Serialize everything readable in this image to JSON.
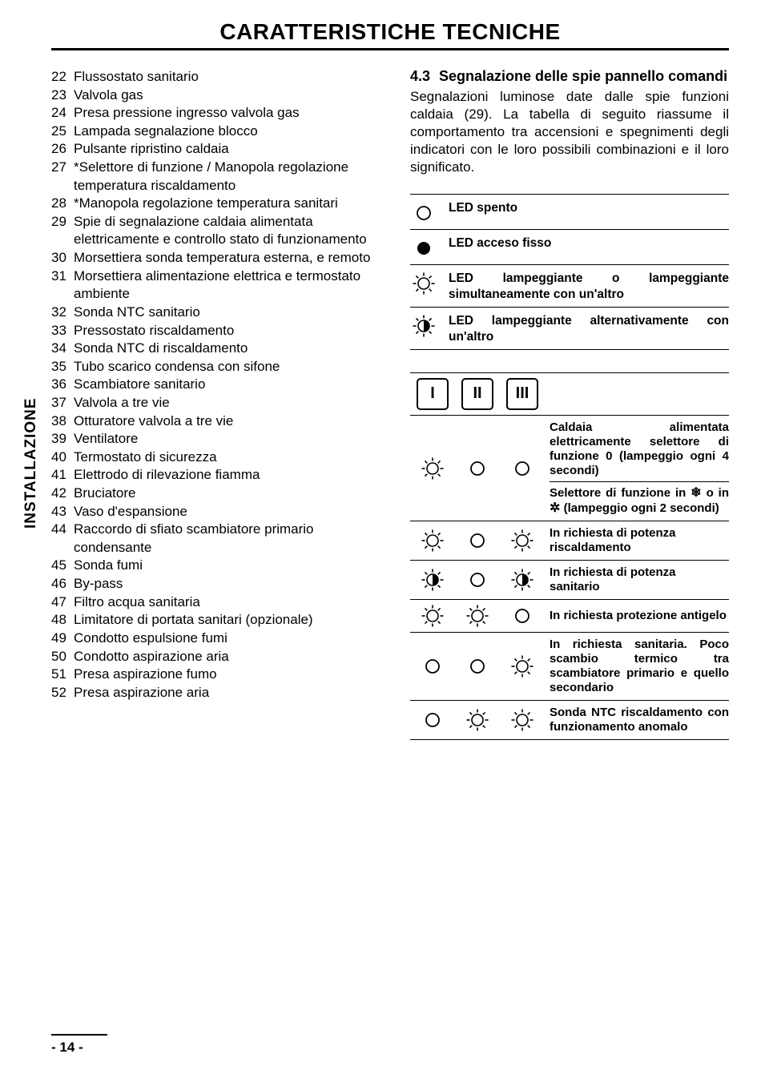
{
  "title": "CARATTERISTICHE TECNICHE",
  "side_tab": "INSTALLAZIONE",
  "page_number": "- 14 -",
  "list": [
    {
      "n": "22",
      "t": "Flussostato sanitario"
    },
    {
      "n": "23",
      "t": "Valvola gas"
    },
    {
      "n": "24",
      "t": "Presa pressione ingresso valvola gas"
    },
    {
      "n": "25",
      "t": "Lampada segnalazione blocco"
    },
    {
      "n": "26",
      "t": "Pulsante ripristino caldaia"
    },
    {
      "n": "27",
      "t": "*Selettore di funzione / Manopola regolazione temperatura riscaldamento"
    },
    {
      "n": "28",
      "t": "*Manopola regolazione temperatura sanitari"
    },
    {
      "n": "29",
      "t": "Spie di segnalazione caldaia alimentata elettricamente e controllo stato di funzionamento"
    },
    {
      "n": "30",
      "t": "Morsettiera sonda temperatura esterna, e remoto"
    },
    {
      "n": "31",
      "t": "Morsettiera alimentazione elettrica e termostato ambiente"
    },
    {
      "n": "32",
      "t": "Sonda NTC sanitario"
    },
    {
      "n": "33",
      "t": "Pressostato riscaldamento"
    },
    {
      "n": "34",
      "t": "Sonda NTC di riscaldamento"
    },
    {
      "n": "35",
      "t": "Tubo scarico condensa con sifone"
    },
    {
      "n": "36",
      "t": "Scambiatore sanitario"
    },
    {
      "n": "37",
      "t": "Valvola a tre vie"
    },
    {
      "n": "38",
      "t": "Otturatore valvola a tre vie"
    },
    {
      "n": "39",
      "t": "Ventilatore"
    },
    {
      "n": "40",
      "t": "Termostato di sicurezza"
    },
    {
      "n": "41",
      "t": "Elettrodo di rilevazione fiamma"
    },
    {
      "n": "42",
      "t": "Bruciatore"
    },
    {
      "n": "43",
      "t": "Vaso d'espansione"
    },
    {
      "n": "44",
      "t": "Raccordo di sfiato scambiatore primario condensante"
    },
    {
      "n": "45",
      "t": "Sonda fumi"
    },
    {
      "n": "46",
      "t": "By-pass"
    },
    {
      "n": "47",
      "t": "Filtro acqua sanitaria"
    },
    {
      "n": "48",
      "t": "Limitatore di portata sanitari (opzionale)"
    },
    {
      "n": "49",
      "t": "Condotto espulsione fumi"
    },
    {
      "n": "50",
      "t": "Condotto aspirazione aria"
    },
    {
      "n": "51",
      "t": "Presa aspirazione fumo"
    },
    {
      "n": "52",
      "t": "Presa aspirazione aria"
    }
  ],
  "section": {
    "num": "4.3",
    "title": "Segnalazione delle spie pannello comandi"
  },
  "body": "Segnalazioni luminose date dalle spie funzioni caldaia (29).\nLa tabella di seguito riassume il comportamento tra accensioni e spegnimenti degli indicatori con le loro possibili combinazioni e il loro significato.",
  "legend": [
    {
      "icon": "off",
      "text": "LED spento"
    },
    {
      "icon": "on",
      "text": "LED acceso fisso"
    },
    {
      "icon": "blink",
      "text": "LED lampeggiante o lampeggiante simultaneamente con un'altro"
    },
    {
      "icon": "blink-alt",
      "text": "LED lampeggiante alternativamente con un'altro"
    }
  ],
  "status_header": [
    "I",
    "II",
    "III"
  ],
  "status_rows": [
    {
      "c": [
        "blink",
        "off",
        "off"
      ],
      "text": "Caldaia alimentata elettricamente selettore di funzione 0 (lampeggio ogni 4 secondi)",
      "extra": "Selettore di funzione in ❄ o in ✱ (lampeggio ogni 2 secondi)"
    },
    {
      "c": [
        "blink",
        "off",
        "blink"
      ],
      "text": "In richiesta di potenza riscaldamento"
    },
    {
      "c": [
        "blink-alt",
        "off",
        "blink-alt"
      ],
      "text": "In richiesta di potenza sanitario"
    },
    {
      "c": [
        "blink",
        "blink",
        "off"
      ],
      "text": "In richiesta protezione antigelo"
    },
    {
      "c": [
        "off",
        "off",
        "blink"
      ],
      "text": "In richiesta sanitaria. Poco scambio termico tra scambiatore primario e quello secondario"
    },
    {
      "c": [
        "off",
        "blink",
        "blink"
      ],
      "text": "Sonda NTC riscaldamento con funzionamento anomalo"
    }
  ],
  "colors": {
    "text": "#000000",
    "bg": "#ffffff",
    "border": "#000000"
  }
}
